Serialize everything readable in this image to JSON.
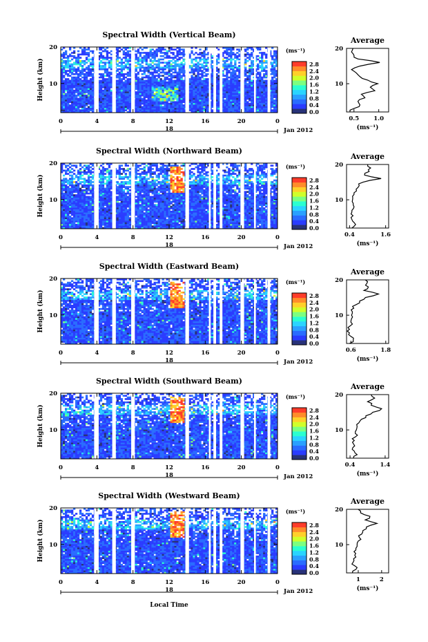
{
  "shared": {
    "ylabel": "Height (km)",
    "cbar_units": "(ms⁻¹)",
    "cbar_ticks": [
      "0.0",
      "0.4",
      "0.8",
      "1.2",
      "1.6",
      "2.0",
      "2.4",
      "2.8"
    ],
    "date_label": "Jan 2012",
    "day_label": "18",
    "avg_title": "Average",
    "avg_xlabel": "(ms⁻¹)",
    "xlabel": "Local Time",
    "colors": {
      "colormap": [
        "#283278",
        "#2a3cff",
        "#2a6cff",
        "#2aa0ff",
        "#2ad4ff",
        "#2affd0",
        "#7cff80",
        "#d0ff2a",
        "#ffd02a",
        "#ff8c2a",
        "#ff3c2a"
      ],
      "gap": "#ffffff"
    }
  },
  "chart_data": [
    {
      "type": "heatmap",
      "title": "Spectral Width (Vertical Beam)",
      "x_ticks": [
        "0",
        "4",
        "8",
        "12",
        "16",
        "20",
        "0"
      ],
      "xlim_hours": [
        0,
        24
      ],
      "y_ticks": [
        "20",
        "10"
      ],
      "ylim_km": [
        2,
        20
      ],
      "colorbar_range": [
        0.0,
        3.0
      ],
      "grid": false,
      "data_gaps_hours": [
        [
          3.7,
          4.2
        ],
        [
          5.7,
          6.1
        ],
        [
          7.8,
          8.2
        ],
        [
          13.8,
          14.2
        ],
        [
          16.4,
          16.6
        ],
        [
          16.9,
          17.2
        ],
        [
          17.6,
          17.9
        ],
        [
          19.9,
          20.3
        ],
        [
          21.4,
          21.6
        ],
        [
          22.9,
          23.2
        ]
      ],
      "average_profile": {
        "x_ticks": [
          "0.5",
          "1.0"
        ],
        "xlim": [
          0.35,
          1.2
        ],
        "height_km": [
          2,
          3,
          4,
          5,
          6,
          7,
          8,
          9,
          10,
          11,
          12,
          13,
          14,
          15,
          16,
          17,
          18,
          19,
          20
        ],
        "value_ms": [
          0.42,
          0.5,
          0.62,
          0.58,
          0.72,
          0.65,
          0.92,
          0.83,
          0.98,
          0.78,
          0.62,
          0.55,
          0.45,
          0.62,
          1.02,
          0.58,
          0.5,
          0.45,
          0.48
        ]
      }
    },
    {
      "type": "heatmap",
      "title": "Spectral Width (Northward Beam)",
      "x_ticks": [
        "0",
        "4",
        "8",
        "12",
        "16",
        "20",
        "0"
      ],
      "xlim_hours": [
        0,
        24
      ],
      "y_ticks": [
        "20",
        "10"
      ],
      "ylim_km": [
        2,
        20
      ],
      "colorbar_range": [
        0.0,
        3.0
      ],
      "grid": false,
      "data_gaps_hours": [
        [
          3.7,
          4.2
        ],
        [
          5.7,
          6.1
        ],
        [
          7.8,
          8.2
        ],
        [
          13.8,
          14.2
        ],
        [
          16.4,
          16.6
        ],
        [
          16.9,
          17.2
        ],
        [
          17.6,
          17.9
        ],
        [
          19.9,
          20.3
        ],
        [
          21.4,
          21.6
        ],
        [
          22.9,
          23.2
        ]
      ],
      "average_profile": {
        "x_ticks": [
          "0.4",
          "1.6"
        ],
        "xlim": [
          0.3,
          1.7
        ],
        "height_km": [
          2,
          3,
          4,
          5,
          6,
          7,
          8,
          9,
          10,
          11,
          12,
          13,
          14,
          15,
          16,
          17,
          18,
          19,
          20
        ],
        "value_ms": [
          0.48,
          0.6,
          0.5,
          0.45,
          0.45,
          0.48,
          0.55,
          0.52,
          0.5,
          0.5,
          0.55,
          0.62,
          0.72,
          0.85,
          1.45,
          0.9,
          1.05,
          1.1,
          1.0
        ]
      }
    },
    {
      "type": "heatmap",
      "title": "Spectral Width (Eastward Beam)",
      "x_ticks": [
        "0",
        "4",
        "8",
        "12",
        "16",
        "20",
        "0"
      ],
      "xlim_hours": [
        0,
        24
      ],
      "y_ticks": [
        "20",
        "10"
      ],
      "ylim_km": [
        2,
        20
      ],
      "colorbar_range": [
        0.0,
        3.0
      ],
      "grid": false,
      "data_gaps_hours": [
        [
          3.7,
          4.2
        ],
        [
          5.7,
          6.1
        ],
        [
          7.8,
          8.2
        ],
        [
          13.8,
          14.2
        ],
        [
          16.4,
          16.6
        ],
        [
          16.9,
          17.2
        ],
        [
          17.6,
          17.9
        ],
        [
          19.9,
          20.3
        ],
        [
          21.4,
          21.6
        ],
        [
          22.9,
          23.2
        ]
      ],
      "average_profile": {
        "x_ticks": [
          "0.6",
          "1.8"
        ],
        "xlim": [
          0.45,
          1.9
        ],
        "height_km": [
          2,
          3,
          4,
          5,
          6,
          7,
          8,
          9,
          10,
          11,
          12,
          13,
          14,
          15,
          16,
          17,
          18,
          19,
          20
        ],
        "value_ms": [
          0.55,
          0.68,
          0.6,
          0.55,
          0.55,
          0.58,
          0.6,
          0.62,
          0.62,
          0.65,
          0.7,
          0.78,
          0.9,
          1.1,
          1.55,
          1.05,
          1.2,
          1.15,
          1.1
        ]
      }
    },
    {
      "type": "heatmap",
      "title": "Spectral Width (Southward Beam)",
      "x_ticks": [
        "0",
        "4",
        "8",
        "12",
        "16",
        "20",
        "0"
      ],
      "xlim_hours": [
        0,
        24
      ],
      "y_ticks": [
        "20",
        "10"
      ],
      "ylim_km": [
        2,
        20
      ],
      "colorbar_range": [
        0.0,
        3.0
      ],
      "grid": false,
      "data_gaps_hours": [
        [
          3.7,
          4.2
        ],
        [
          5.7,
          6.1
        ],
        [
          7.8,
          8.2
        ],
        [
          13.8,
          14.2
        ],
        [
          16.4,
          16.6
        ],
        [
          16.9,
          17.2
        ],
        [
          17.6,
          17.9
        ],
        [
          19.9,
          20.3
        ],
        [
          21.4,
          21.6
        ],
        [
          22.9,
          23.2
        ]
      ],
      "average_profile": {
        "x_ticks": [
          "0.4",
          "1.4"
        ],
        "xlim": [
          0.3,
          1.5
        ],
        "height_km": [
          2,
          3,
          4,
          5,
          6,
          7,
          8,
          9,
          10,
          11,
          12,
          13,
          14,
          15,
          16,
          17,
          18,
          19,
          20
        ],
        "value_ms": [
          0.5,
          0.6,
          0.52,
          0.48,
          0.5,
          0.52,
          0.55,
          0.55,
          0.58,
          0.6,
          0.65,
          0.72,
          0.85,
          1.05,
          1.3,
          1.0,
          0.9,
          1.1,
          1.0
        ]
      }
    },
    {
      "type": "heatmap",
      "title": "Spectral Width (Westward Beam)",
      "x_ticks": [
        "0",
        "4",
        "8",
        "12",
        "16",
        "20",
        "0"
      ],
      "xlim_hours": [
        0,
        24
      ],
      "y_ticks": [
        "20",
        "10"
      ],
      "ylim_km": [
        2,
        20
      ],
      "colorbar_range": [
        0.0,
        3.0
      ],
      "grid": false,
      "data_gaps_hours": [
        [
          3.7,
          4.2
        ],
        [
          5.7,
          6.1
        ],
        [
          7.8,
          8.2
        ],
        [
          13.8,
          14.2
        ],
        [
          16.4,
          16.6
        ],
        [
          16.9,
          17.2
        ],
        [
          17.6,
          17.9
        ],
        [
          19.9,
          20.3
        ],
        [
          21.4,
          21.6
        ],
        [
          22.9,
          23.2
        ]
      ],
      "average_profile": {
        "x_ticks": [
          "1",
          "2"
        ],
        "xlim": [
          0.5,
          2.3
        ],
        "height_km": [
          2,
          3,
          4,
          5,
          6,
          7,
          8,
          9,
          10,
          11,
          12,
          13,
          14,
          15,
          16,
          17,
          18,
          19,
          20
        ],
        "value_ms": [
          0.75,
          0.9,
          0.85,
          0.78,
          0.8,
          0.85,
          0.82,
          0.9,
          0.95,
          1.0,
          1.05,
          1.15,
          1.2,
          1.35,
          1.8,
          1.3,
          1.5,
          1.1,
          1.0
        ]
      }
    }
  ]
}
